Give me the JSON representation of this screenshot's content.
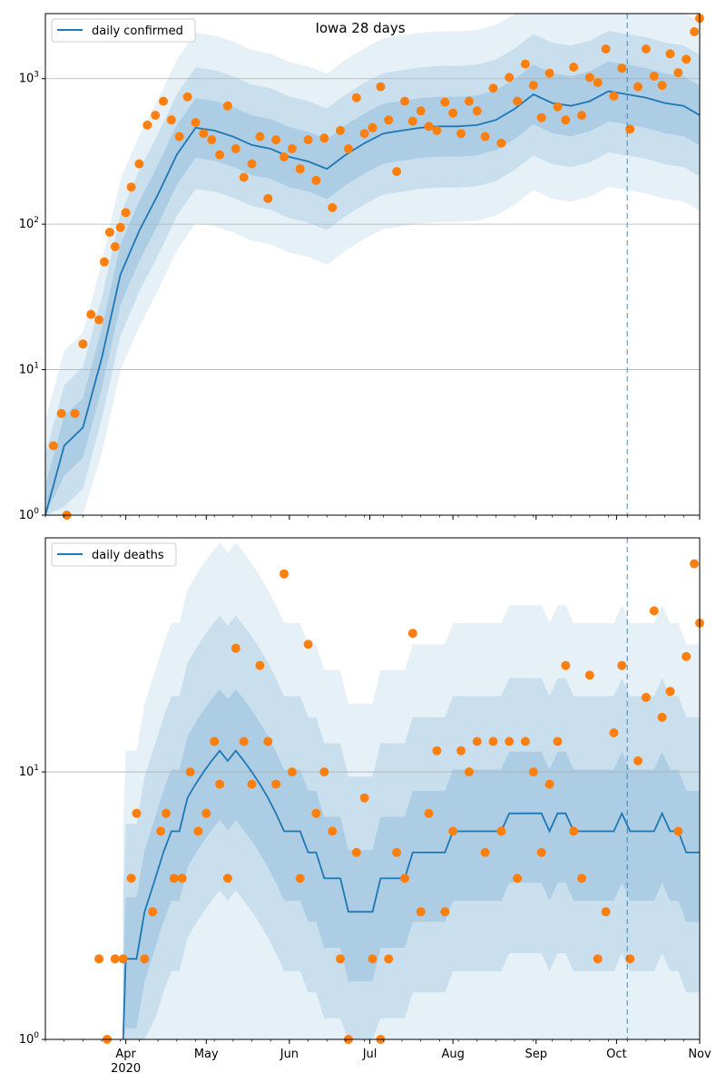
{
  "figure_title": "Iowa 28 days",
  "colors": {
    "line": "#1f77b4",
    "points": "#ff7f0e",
    "band": "#1f77b4",
    "grid": "#b0b0b0",
    "forecast_marker": "#1f77b4"
  },
  "chart_data": [
    {
      "type": "line",
      "name": "confirmed",
      "legend": "daily confirmed",
      "legend_position": "upper-left",
      "y_scale": "log",
      "ylim": [
        1,
        2800
      ],
      "grid": "horizontal",
      "x_range": [
        "2020-03-02",
        "2020-11-01"
      ],
      "x_ticks": [
        "Apr\n2020",
        "May",
        "Jun",
        "Jul",
        "Aug",
        "Sep",
        "Oct",
        "Nov"
      ],
      "y_ticks": [
        "10^0",
        "10^1",
        "10^2",
        "10^3"
      ],
      "forecast_start": "2020-10-05",
      "series": [
        {
          "name": "daily confirmed",
          "x": [
            "2020-03-02",
            "2020-03-09",
            "2020-03-16",
            "2020-03-23",
            "2020-03-30",
            "2020-04-06",
            "2020-04-13",
            "2020-04-20",
            "2020-04-27",
            "2020-05-04",
            "2020-05-11",
            "2020-05-18",
            "2020-05-25",
            "2020-06-01",
            "2020-06-08",
            "2020-06-15",
            "2020-06-22",
            "2020-06-29",
            "2020-07-06",
            "2020-07-13",
            "2020-07-20",
            "2020-07-27",
            "2020-08-03",
            "2020-08-10",
            "2020-08-17",
            "2020-08-24",
            "2020-08-31",
            "2020-09-07",
            "2020-09-14",
            "2020-09-21",
            "2020-09-28",
            "2020-10-05",
            "2020-10-12",
            "2020-10-19",
            "2020-10-26",
            "2020-11-01"
          ],
          "values": [
            1,
            3,
            4,
            12,
            45,
            90,
            160,
            300,
            460,
            440,
            400,
            350,
            330,
            290,
            270,
            240,
            300,
            360,
            420,
            440,
            460,
            470,
            470,
            480,
            520,
            620,
            780,
            680,
            650,
            700,
            820,
            780,
            740,
            680,
            650,
            560
          ]
        },
        {
          "name": "observed daily confirmed",
          "x": [
            "2020-03-05",
            "2020-03-08",
            "2020-03-10",
            "2020-03-13",
            "2020-03-16",
            "2020-03-19",
            "2020-03-22",
            "2020-03-24",
            "2020-03-26",
            "2020-03-28",
            "2020-03-30",
            "2020-04-01",
            "2020-04-03",
            "2020-04-06",
            "2020-04-09",
            "2020-04-12",
            "2020-04-15",
            "2020-04-18",
            "2020-04-21",
            "2020-04-24",
            "2020-04-27",
            "2020-04-30",
            "2020-05-03",
            "2020-05-06",
            "2020-05-09",
            "2020-05-12",
            "2020-05-15",
            "2020-05-18",
            "2020-05-21",
            "2020-05-24",
            "2020-05-27",
            "2020-05-30",
            "2020-06-02",
            "2020-06-05",
            "2020-06-08",
            "2020-06-11",
            "2020-06-14",
            "2020-06-17",
            "2020-06-20",
            "2020-06-23",
            "2020-06-26",
            "2020-06-29",
            "2020-07-02",
            "2020-07-05",
            "2020-07-08",
            "2020-07-11",
            "2020-07-14",
            "2020-07-17",
            "2020-07-20",
            "2020-07-23",
            "2020-07-26",
            "2020-07-29",
            "2020-08-01",
            "2020-08-04",
            "2020-08-07",
            "2020-08-10",
            "2020-08-13",
            "2020-08-16",
            "2020-08-19",
            "2020-08-22",
            "2020-08-25",
            "2020-08-28",
            "2020-08-31",
            "2020-09-03",
            "2020-09-06",
            "2020-09-09",
            "2020-09-12",
            "2020-09-15",
            "2020-09-18",
            "2020-09-21",
            "2020-09-24",
            "2020-09-27",
            "2020-09-30",
            "2020-10-03",
            "2020-10-06",
            "2020-10-09",
            "2020-10-12",
            "2020-10-15",
            "2020-10-18",
            "2020-10-21",
            "2020-10-24",
            "2020-10-27",
            "2020-10-30",
            "2020-11-01"
          ],
          "values": [
            3,
            5,
            1,
            5,
            15,
            24,
            22,
            55,
            88,
            70,
            95,
            120,
            180,
            260,
            480,
            560,
            700,
            520,
            400,
            750,
            500,
            420,
            380,
            300,
            650,
            330,
            210,
            260,
            400,
            150,
            380,
            290,
            330,
            240,
            380,
            200,
            390,
            130,
            440,
            330,
            740,
            420,
            460,
            880,
            520,
            230,
            700,
            510,
            600,
            470,
            440,
            690,
            580,
            420,
            700,
            600,
            400,
            860,
            360,
            1020,
            700,
            1260,
            900,
            540,
            1090,
            640,
            520,
            1200,
            560,
            1020,
            940,
            1600,
            760,
            1180,
            450,
            880,
            1600,
            1040,
            900,
            1480,
            1100,
            1360,
            2100,
            2600
          ]
        }
      ]
    },
    {
      "type": "line",
      "name": "deaths",
      "legend": "daily deaths",
      "legend_position": "upper-left",
      "y_scale": "log",
      "ylim": [
        1,
        75
      ],
      "grid": "horizontal",
      "x_range": [
        "2020-03-02",
        "2020-11-01"
      ],
      "x_ticks": [
        "Apr\n2020",
        "May",
        "Jun",
        "Jul",
        "Aug",
        "Sep",
        "Oct",
        "Nov"
      ],
      "y_ticks": [
        "10^0",
        "10^1"
      ],
      "forecast_start": "2020-10-05",
      "series": [
        {
          "name": "daily deaths",
          "x": [
            "2020-03-31",
            "2020-04-01",
            "2020-04-05",
            "2020-04-08",
            "2020-04-12",
            "2020-04-15",
            "2020-04-18",
            "2020-04-21",
            "2020-04-24",
            "2020-04-27",
            "2020-04-30",
            "2020-05-03",
            "2020-05-06",
            "2020-05-09",
            "2020-05-12",
            "2020-05-15",
            "2020-05-18",
            "2020-05-21",
            "2020-05-24",
            "2020-05-27",
            "2020-05-30",
            "2020-06-02",
            "2020-06-05",
            "2020-06-08",
            "2020-06-11",
            "2020-06-14",
            "2020-06-17",
            "2020-06-20",
            "2020-06-23",
            "2020-06-26",
            "2020-06-29",
            "2020-07-02",
            "2020-07-05",
            "2020-07-08",
            "2020-07-11",
            "2020-07-14",
            "2020-07-17",
            "2020-07-20",
            "2020-07-23",
            "2020-07-26",
            "2020-07-29",
            "2020-08-01",
            "2020-08-04",
            "2020-08-07",
            "2020-08-10",
            "2020-08-13",
            "2020-08-16",
            "2020-08-19",
            "2020-08-22",
            "2020-08-25",
            "2020-08-28",
            "2020-08-31",
            "2020-09-03",
            "2020-09-06",
            "2020-09-09",
            "2020-09-12",
            "2020-09-15",
            "2020-09-18",
            "2020-09-21",
            "2020-09-24",
            "2020-09-27",
            "2020-09-30",
            "2020-10-03",
            "2020-10-06",
            "2020-10-09",
            "2020-10-12",
            "2020-10-15",
            "2020-10-18",
            "2020-10-21",
            "2020-10-24",
            "2020-10-27",
            "2020-10-30",
            "2020-11-01"
          ],
          "values": [
            1,
            2,
            2,
            3,
            4,
            5,
            6,
            6,
            8,
            9,
            10,
            11,
            12,
            11,
            12,
            11,
            10,
            9,
            8,
            7,
            6,
            6,
            6,
            5,
            5,
            4,
            4,
            4,
            3,
            3,
            3,
            3,
            4,
            4,
            4,
            4,
            5,
            5,
            5,
            5,
            5,
            6,
            6,
            6,
            6,
            6,
            6,
            6,
            7,
            7,
            7,
            7,
            7,
            6,
            7,
            7,
            6,
            6,
            6,
            6,
            6,
            6,
            7,
            6,
            6,
            6,
            6,
            7,
            6,
            6,
            5,
            5,
            5
          ]
        },
        {
          "name": "observed daily deaths",
          "x": [
            "2020-03-22",
            "2020-03-25",
            "2020-03-28",
            "2020-03-31",
            "2020-04-03",
            "2020-04-05",
            "2020-04-08",
            "2020-04-11",
            "2020-04-14",
            "2020-04-16",
            "2020-04-19",
            "2020-04-22",
            "2020-04-25",
            "2020-04-28",
            "2020-05-01",
            "2020-05-04",
            "2020-05-06",
            "2020-05-09",
            "2020-05-12",
            "2020-05-15",
            "2020-05-18",
            "2020-05-21",
            "2020-05-24",
            "2020-05-27",
            "2020-05-30",
            "2020-06-02",
            "2020-06-05",
            "2020-06-08",
            "2020-06-11",
            "2020-06-14",
            "2020-06-17",
            "2020-06-20",
            "2020-06-23",
            "2020-06-26",
            "2020-06-29",
            "2020-07-02",
            "2020-07-05",
            "2020-07-08",
            "2020-07-11",
            "2020-07-14",
            "2020-07-17",
            "2020-07-20",
            "2020-07-23",
            "2020-07-26",
            "2020-07-29",
            "2020-08-01",
            "2020-08-04",
            "2020-08-07",
            "2020-08-10",
            "2020-08-13",
            "2020-08-16",
            "2020-08-19",
            "2020-08-22",
            "2020-08-25",
            "2020-08-28",
            "2020-08-31",
            "2020-09-03",
            "2020-09-06",
            "2020-09-09",
            "2020-09-12",
            "2020-09-15",
            "2020-09-18",
            "2020-09-21",
            "2020-09-24",
            "2020-09-27",
            "2020-09-30",
            "2020-10-03",
            "2020-10-06",
            "2020-10-09",
            "2020-10-12",
            "2020-10-15",
            "2020-10-18",
            "2020-10-21",
            "2020-10-24",
            "2020-10-27",
            "2020-10-30",
            "2020-11-01"
          ],
          "values": [
            2,
            1,
            2,
            2,
            4,
            7,
            2,
            3,
            6,
            7,
            4,
            4,
            10,
            6,
            7,
            13,
            9,
            4,
            29,
            13,
            9,
            25,
            13,
            9,
            55,
            10,
            4,
            30,
            7,
            10,
            6,
            2,
            1,
            5,
            8,
            2,
            1,
            2,
            5,
            4,
            33,
            3,
            7,
            12,
            3,
            6,
            12,
            10,
            13,
            5,
            13,
            6,
            13,
            4,
            13,
            10,
            5,
            9,
            13,
            25,
            6,
            4,
            23,
            2,
            3,
            14,
            25,
            2,
            11,
            19,
            40,
            16,
            20,
            6,
            27,
            60,
            36
          ]
        }
      ]
    }
  ]
}
